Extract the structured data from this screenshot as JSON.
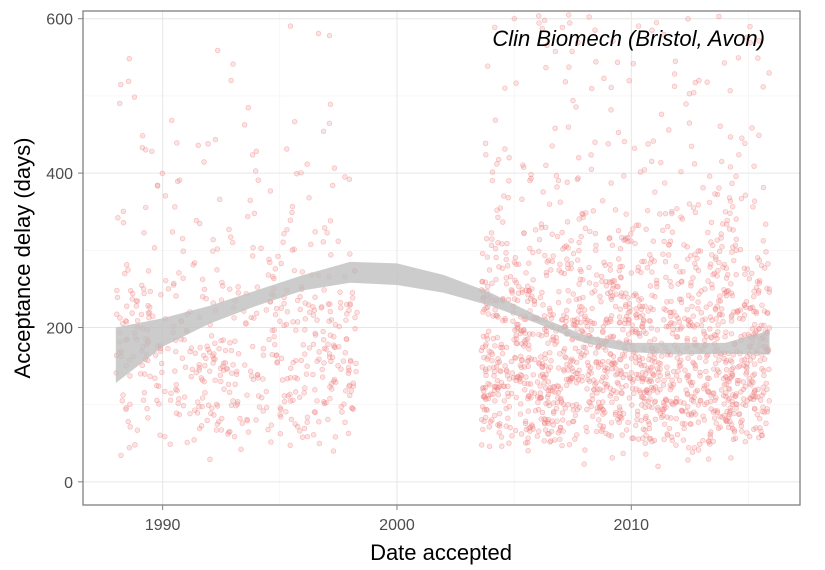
{
  "chart_data": {
    "type": "scatter",
    "title": "",
    "annotation": "Clin Biomech (Bristol, Avon)",
    "xlabel": "Date accepted",
    "ylabel": "Acceptance delay (days)",
    "xlim": [
      1986.6,
      2017.2
    ],
    "ylim": [
      -30,
      610
    ],
    "x_ticks": [
      {
        "value": 1990,
        "label": "1990"
      },
      {
        "value": 2000,
        "label": "2000"
      },
      {
        "value": 2010,
        "label": "2010"
      }
    ],
    "y_ticks": [
      {
        "value": 0,
        "label": "0"
      },
      {
        "value": 200,
        "label": "200"
      },
      {
        "value": 400,
        "label": "400"
      },
      {
        "value": 600,
        "label": "600"
      }
    ],
    "grid": true,
    "legend": "none",
    "point_color": "#f08080",
    "band_color": "#bfbfbf",
    "point_groups": [
      {
        "x_range": [
          1988.0,
          1998.3
        ],
        "count": 560,
        "y_mode": 175
      },
      {
        "x_range": [
          2003.6,
          2015.9
        ],
        "count": 1700,
        "y_mode": 150
      }
    ],
    "smooth_band": {
      "x": [
        1988.0,
        1990,
        1992,
        1994,
        1996,
        1998,
        2000,
        2002,
        2004,
        2006,
        2008,
        2010,
        2012,
        2014,
        2015.9
      ],
      "lower": [
        128,
        175,
        205,
        228,
        248,
        258,
        255,
        245,
        228,
        205,
        180,
        168,
        165,
        166,
        165
      ],
      "upper": [
        200,
        212,
        228,
        248,
        268,
        285,
        283,
        268,
        245,
        215,
        190,
        180,
        180,
        180,
        196
      ]
    }
  }
}
